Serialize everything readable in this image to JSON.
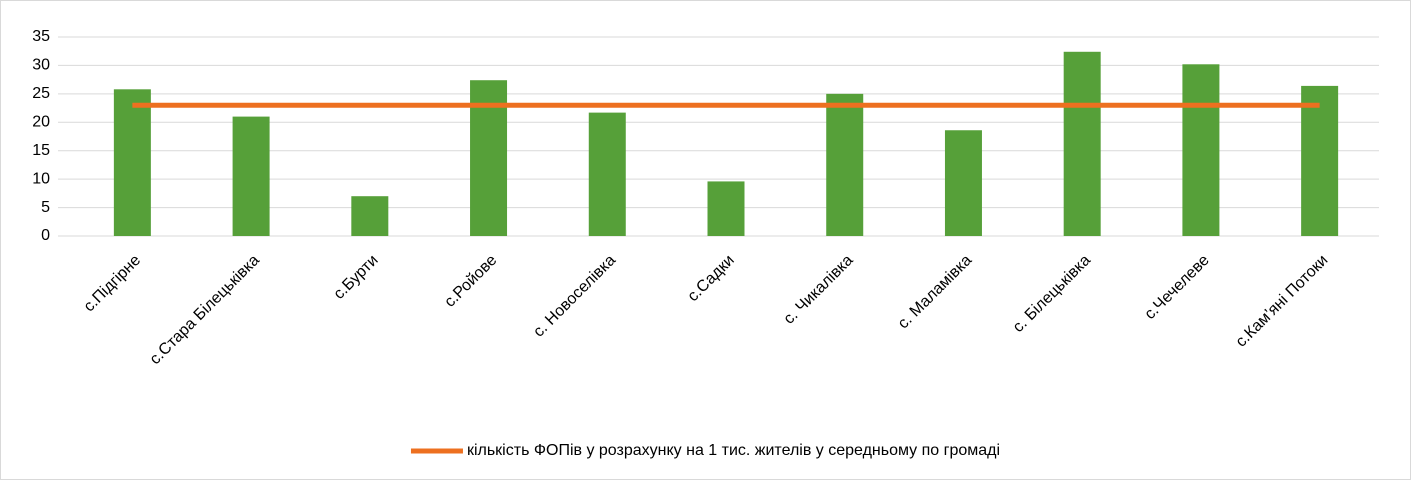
{
  "chart_data": {
    "type": "bar",
    "categories": [
      "с.Підгірне",
      "с.Стара Білецьківка",
      "с.Бурти",
      "с.Ройове",
      "с. Новоселівка",
      "с.Садки",
      "с. Чикалівка",
      "с. Маламівка",
      "с. Білецьківка",
      "с.Чечелеве",
      "с.Кам’яні Потоки"
    ],
    "series": [
      {
        "color": "#56a039",
        "values": [
          25.8,
          21,
          7,
          27.4,
          21.7,
          9.6,
          25,
          18.6,
          32.4,
          30.2,
          26.4
        ]
      },
      {
        "name": "кількість ФОПів у розрахунку на 1 тис. жителів у середньому по громаді",
        "type": "line",
        "color": "#ed7020",
        "values": [
          23,
          23,
          23,
          23,
          23,
          23,
          23,
          23,
          23,
          23,
          23
        ]
      }
    ],
    "ylim": [
      0,
      35
    ],
    "yticks": [
      0,
      5,
      10,
      15,
      20,
      25,
      30,
      35
    ],
    "grid": true,
    "legend": "bottom"
  }
}
